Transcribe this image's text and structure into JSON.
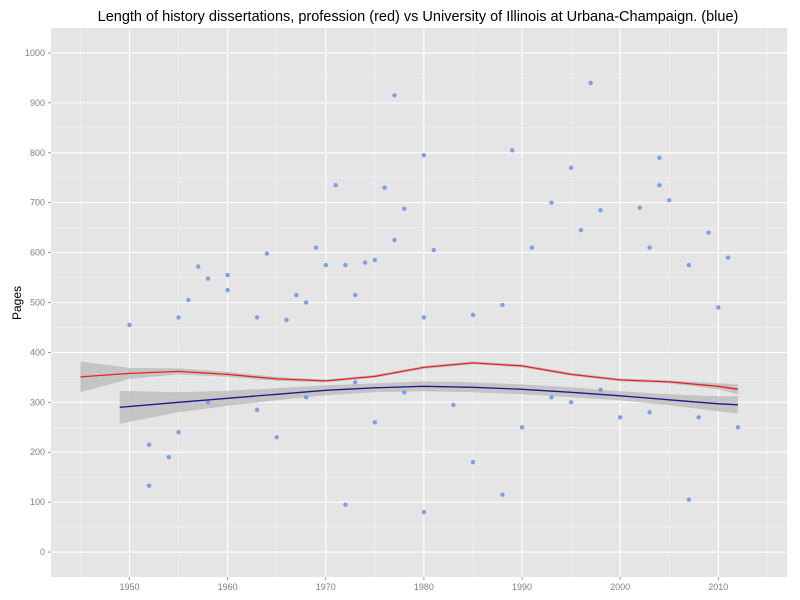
{
  "chart_data": {
    "type": "scatter",
    "title": "Length of history dissertations, profession (red) vs University of Illinois at Urbana-Champaign. (blue)",
    "xlabel": "",
    "ylabel": "Pages",
    "xlim": [
      1942,
      2017
    ],
    "ylim": [
      -50,
      1050
    ],
    "x_ticks": [
      1950,
      1960,
      1970,
      1980,
      1990,
      2000,
      2010
    ],
    "y_ticks": [
      0,
      100,
      200,
      300,
      400,
      500,
      600,
      700,
      800,
      900,
      1000
    ],
    "grid": true,
    "legend": "none",
    "colors": {
      "panel": "#e5e5e5",
      "grid_major": "#ffffff",
      "grid_minor": "#f2f2f2",
      "points": "#7ba0e6",
      "band": "#b8b8b8",
      "profession_line": "#e8211e",
      "uiuc_line": "#1a1a8c"
    },
    "series": [
      {
        "type": "line",
        "color": "#e8211e",
        "x": [
          1945,
          1950,
          1955,
          1960,
          1965,
          1970,
          1975,
          1980,
          1985,
          1990,
          1995,
          2000,
          2005,
          2010,
          2012
        ],
        "y": [
          351,
          358,
          362,
          356,
          347,
          343,
          352,
          370,
          379,
          373,
          356,
          345,
          341,
          332,
          326
        ],
        "band_upper": [
          382,
          369,
          368,
          361,
          351,
          346,
          355,
          373,
          382,
          376,
          359,
          348,
          344,
          338,
          336
        ],
        "band_lower": [
          320,
          347,
          356,
          351,
          343,
          340,
          349,
          367,
          376,
          370,
          353,
          342,
          338,
          326,
          316
        ]
      },
      {
        "type": "line",
        "color": "#1a1a8c",
        "x": [
          1949,
          1955,
          1960,
          1965,
          1970,
          1975,
          1980,
          1985,
          1990,
          1995,
          2000,
          2005,
          2010,
          2012
        ],
        "y": [
          290,
          300,
          308,
          316,
          324,
          329,
          332,
          330,
          326,
          320,
          313,
          305,
          297,
          295
        ],
        "band_upper": [
          323,
          320,
          323,
          328,
          334,
          338,
          342,
          340,
          336,
          330,
          322,
          316,
          312,
          312
        ],
        "band_lower": [
          257,
          280,
          293,
          304,
          314,
          320,
          322,
          320,
          316,
          310,
          304,
          294,
          282,
          278
        ]
      },
      {
        "type": "scatter",
        "color": "#7ba0e6",
        "x": [
          1950,
          1952,
          1954,
          1955,
          1956,
          1957,
          1958,
          1960,
          1960,
          1963,
          1964,
          1966,
          1967,
          1968,
          1969,
          1970,
          1971,
          1972,
          1973,
          1974,
          1975,
          1976,
          1977,
          1977,
          1978,
          1980,
          1980,
          1981,
          1985,
          1988,
          1989,
          1991,
          1993,
          1995,
          1996,
          1997,
          1998,
          2002,
          2003,
          2004,
          2004,
          2005,
          2007,
          2009,
          2010,
          2011,
          1972,
          1980,
          1988,
          2007,
          1985,
          1990,
          1995,
          2000,
          1955,
          1965,
          1975,
          1952,
          1958,
          1963,
          1968,
          1973,
          1978,
          1983,
          1993,
          1998,
          2003,
          2008,
          2012
        ],
        "y": [
          455,
          133,
          190,
          470,
          505,
          572,
          548,
          555,
          525,
          470,
          598,
          465,
          515,
          500,
          610,
          575,
          735,
          575,
          515,
          580,
          585,
          730,
          625,
          915,
          688,
          795,
          470,
          605,
          475,
          495,
          805,
          610,
          700,
          770,
          645,
          940,
          685,
          690,
          610,
          735,
          790,
          705,
          575,
          640,
          490,
          590,
          95,
          80,
          115,
          105,
          180,
          250,
          300,
          270,
          240,
          230,
          260,
          215,
          300,
          285,
          310,
          340,
          320,
          295,
          310,
          325,
          280,
          270,
          250
        ]
      }
    ]
  }
}
